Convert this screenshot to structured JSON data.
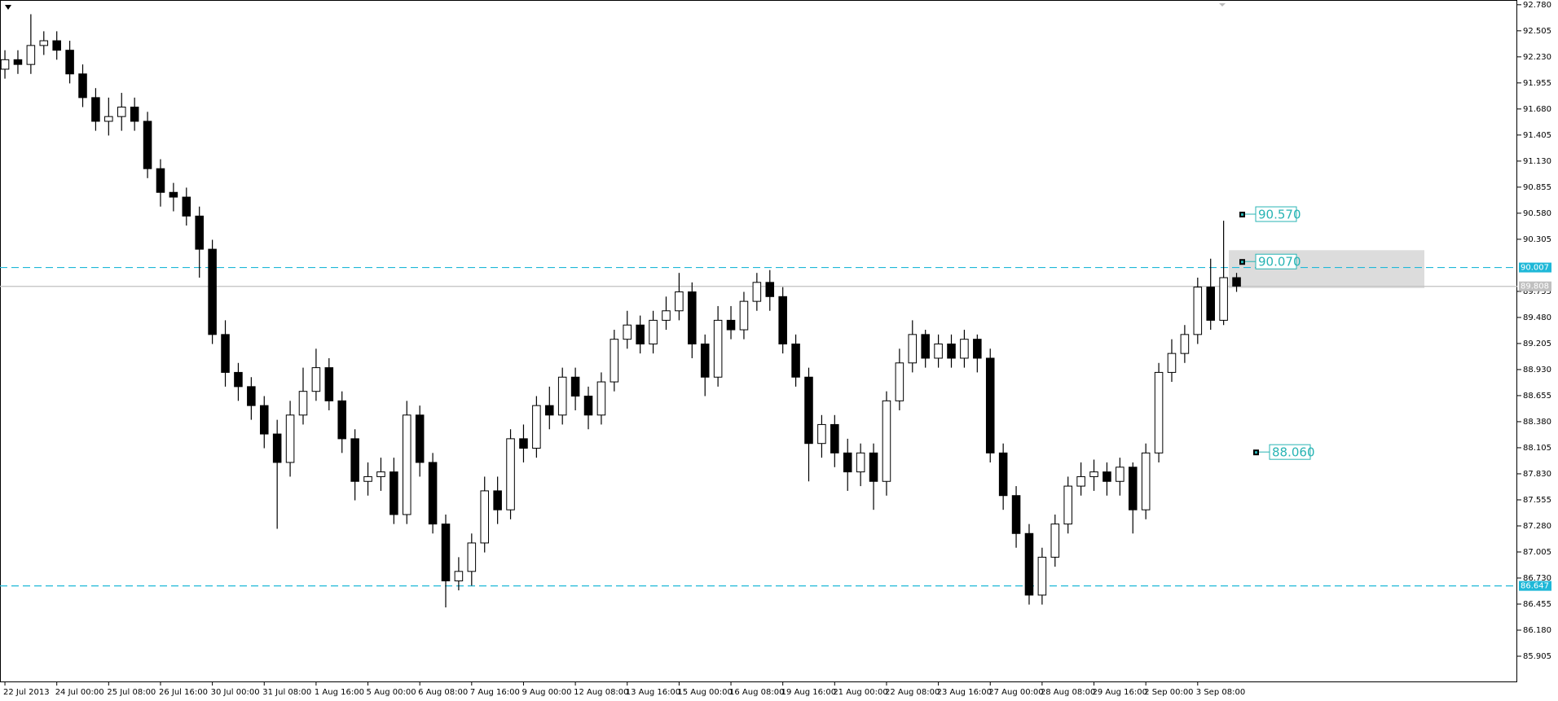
{
  "chart_data": {
    "type": "candlestick",
    "up_color": "#ffffff",
    "down_color": "#000000",
    "outline_color": "#000000",
    "open": [
      92.1,
      92.2,
      92.15,
      92.35,
      92.4,
      92.3,
      92.05,
      91.8,
      91.55,
      91.6,
      91.7,
      91.55,
      91.05,
      90.8,
      90.75,
      90.55,
      90.2,
      89.3,
      88.9,
      88.75,
      88.55,
      88.25,
      87.95,
      88.45,
      88.7,
      88.95,
      88.6,
      88.2,
      87.75,
      87.8,
      87.85,
      87.4,
      88.45,
      87.95,
      87.3,
      86.7,
      86.8,
      87.1,
      87.65,
      87.45,
      88.2,
      88.1,
      88.55,
      88.45,
      88.85,
      88.65,
      88.45,
      88.8,
      89.25,
      89.4,
      89.2,
      89.45,
      89.55,
      89.75,
      89.2,
      88.85,
      89.45,
      89.35,
      89.65,
      89.85,
      89.7,
      89.2,
      88.85,
      88.15,
      88.35,
      88.05,
      87.85,
      88.05,
      87.75,
      88.6,
      89.0,
      89.3,
      89.05,
      89.2,
      89.05,
      89.25,
      89.05,
      88.05,
      87.6,
      87.2,
      86.55,
      86.95,
      87.3,
      87.7,
      87.8,
      87.85,
      87.75,
      87.9,
      87.45,
      88.05,
      88.9,
      89.1,
      89.3,
      89.8,
      89.45,
      89.9
    ],
    "high": [
      92.3,
      92.3,
      92.68,
      92.5,
      92.5,
      92.4,
      92.15,
      91.9,
      91.8,
      91.85,
      91.8,
      91.65,
      91.15,
      90.9,
      90.85,
      90.65,
      90.3,
      89.45,
      89.0,
      88.85,
      88.65,
      88.4,
      88.6,
      88.95,
      89.15,
      89.05,
      88.7,
      88.3,
      87.95,
      88.0,
      88.0,
      88.6,
      88.55,
      88.05,
      87.4,
      86.95,
      87.2,
      87.8,
      87.8,
      88.3,
      88.35,
      88.65,
      88.75,
      88.95,
      88.95,
      88.75,
      88.9,
      89.35,
      89.55,
      89.5,
      89.55,
      89.7,
      89.95,
      89.85,
      89.3,
      89.6,
      89.6,
      89.75,
      89.95,
      89.98,
      89.8,
      89.3,
      88.95,
      88.45,
      88.45,
      88.2,
      88.15,
      88.15,
      88.7,
      89.15,
      89.45,
      89.35,
      89.3,
      89.3,
      89.35,
      89.3,
      89.15,
      88.15,
      87.7,
      87.3,
      87.05,
      87.4,
      87.8,
      87.95,
      87.98,
      87.95,
      88.0,
      87.95,
      88.15,
      89.0,
      89.25,
      89.4,
      89.9,
      90.1,
      90.5,
      89.95
    ],
    "low": [
      92.0,
      92.05,
      92.05,
      92.25,
      92.2,
      91.95,
      91.7,
      91.45,
      91.4,
      91.45,
      91.45,
      90.95,
      90.65,
      90.6,
      90.45,
      89.9,
      89.2,
      88.75,
      88.6,
      88.4,
      88.1,
      87.25,
      87.8,
      88.35,
      88.6,
      88.5,
      88.05,
      87.55,
      87.6,
      87.65,
      87.3,
      87.3,
      87.8,
      87.2,
      86.42,
      86.6,
      86.65,
      87.0,
      87.3,
      87.35,
      87.95,
      88.0,
      88.3,
      88.35,
      88.5,
      88.3,
      88.35,
      88.7,
      89.15,
      89.1,
      89.1,
      89.35,
      89.45,
      89.05,
      88.65,
      88.75,
      89.25,
      89.25,
      89.55,
      89.55,
      89.1,
      88.75,
      87.75,
      88.0,
      87.9,
      87.65,
      87.7,
      87.45,
      87.6,
      88.5,
      88.9,
      88.95,
      88.95,
      88.95,
      88.95,
      88.9,
      87.95,
      87.45,
      87.05,
      86.45,
      86.45,
      86.85,
      87.2,
      87.6,
      87.65,
      87.6,
      87.6,
      87.2,
      87.35,
      87.95,
      88.8,
      89.0,
      89.2,
      89.35,
      89.4,
      89.75
    ],
    "close": [
      92.2,
      92.15,
      92.35,
      92.4,
      92.3,
      92.05,
      91.8,
      91.55,
      91.6,
      91.7,
      91.55,
      91.05,
      90.8,
      90.75,
      90.55,
      90.2,
      89.3,
      88.9,
      88.75,
      88.55,
      88.25,
      87.95,
      88.45,
      88.7,
      88.95,
      88.6,
      88.2,
      87.75,
      87.8,
      87.85,
      87.4,
      88.45,
      87.95,
      87.3,
      86.7,
      86.8,
      87.1,
      87.65,
      87.45,
      88.2,
      88.1,
      88.55,
      88.45,
      88.85,
      88.65,
      88.45,
      88.8,
      89.25,
      89.4,
      89.2,
      89.45,
      89.55,
      89.75,
      89.2,
      88.85,
      89.45,
      89.35,
      89.65,
      89.85,
      89.7,
      89.2,
      88.85,
      88.15,
      88.35,
      88.05,
      87.85,
      88.05,
      87.75,
      88.6,
      89.0,
      89.3,
      89.05,
      89.2,
      89.05,
      89.25,
      89.05,
      88.05,
      87.6,
      87.2,
      86.55,
      86.95,
      87.3,
      87.7,
      87.8,
      87.85,
      87.75,
      87.9,
      87.45,
      88.05,
      88.9,
      89.1,
      89.3,
      89.8,
      89.45,
      89.9,
      89.81
    ],
    "xlim": [
      -0.38,
      116.65
    ],
    "xticks": [
      {
        "value": 0,
        "label": "22 Jul 2013"
      },
      {
        "value": 4,
        "label": "24 Jul 00:00"
      },
      {
        "value": 8,
        "label": "25 Jul 08:00"
      },
      {
        "value": 12,
        "label": "26 Jul 16:00"
      },
      {
        "value": 16,
        "label": "30 Jul 00:00"
      },
      {
        "value": 20,
        "label": "31 Jul 08:00"
      },
      {
        "value": 24,
        "label": "1 Aug 16:00"
      },
      {
        "value": 28,
        "label": "5 Aug 00:00"
      },
      {
        "value": 32,
        "label": "6 Aug 08:00"
      },
      {
        "value": 36,
        "label": "7 Aug 16:00"
      },
      {
        "value": 40,
        "label": "9 Aug 00:00"
      },
      {
        "value": 44,
        "label": "12 Aug 08:00"
      },
      {
        "value": 48,
        "label": "13 Aug 16:00"
      },
      {
        "value": 52,
        "label": "15 Aug 00:00"
      },
      {
        "value": 56,
        "label": "16 Aug 08:00"
      },
      {
        "value": 60,
        "label": "19 Aug 16:00"
      },
      {
        "value": 64,
        "label": "21 Aug 00:00"
      },
      {
        "value": 68,
        "label": "22 Aug 08:00"
      },
      {
        "value": 72,
        "label": "23 Aug 16:00"
      },
      {
        "value": 76,
        "label": "27 Aug 00:00"
      },
      {
        "value": 80,
        "label": "28 Aug 08:00"
      },
      {
        "value": 84,
        "label": "29 Aug 16:00"
      },
      {
        "value": 88,
        "label": "2 Sep 00:00"
      },
      {
        "value": 92,
        "label": "3 Sep 08:00"
      }
    ],
    "ylim": [
      85.63,
      92.83
    ],
    "yticks": [
      {
        "value": 92.78,
        "label": "92.780"
      },
      92.505,
      {
        "value": 92.23,
        "label": "92.230"
      },
      91.955,
      {
        "value": 91.68,
        "label": "91.680"
      },
      91.405,
      {
        "value": 91.13,
        "label": "91.130"
      },
      90.855,
      {
        "value": 90.58,
        "label": "90.580"
      },
      90.305,
      89.755,
      {
        "value": 89.48,
        "label": "89.480"
      },
      89.205,
      {
        "value": 88.93,
        "label": "88.930"
      },
      88.655,
      {
        "value": 88.38,
        "label": "88.380"
      },
      88.105,
      {
        "value": 87.83,
        "label": "87.830"
      },
      87.555,
      {
        "value": 87.28,
        "label": "87.280"
      },
      87.005,
      {
        "value": 86.73,
        "label": "86.730"
      },
      86.455,
      {
        "value": 86.18,
        "label": "86.180"
      },
      85.905
    ],
    "hlines": [
      {
        "value": 89.808,
        "label": "89.808",
        "color": "#c0c0c0",
        "style": "solid"
      },
      {
        "value": 90.007,
        "label": "90.007",
        "color": "#1fb8d8",
        "style": "dashed"
      },
      {
        "value": 86.647,
        "label": "86.647",
        "color": "#1fb8d8",
        "style": "dashed"
      }
    ],
    "zone": {
      "from": 89.79,
      "to": 90.19,
      "color": "#dcdcdc"
    },
    "annotation_color": "#28b4b4",
    "annotations": [
      {
        "value": 90.57,
        "label": "90.570"
      },
      {
        "value": 90.07,
        "label": "90.070"
      },
      {
        "value": 88.06,
        "label": "88.060"
      }
    ]
  }
}
